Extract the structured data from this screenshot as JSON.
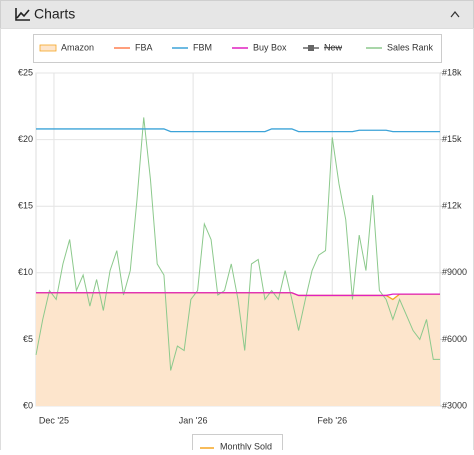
{
  "header": {
    "title": "Charts"
  },
  "chart_data": {
    "type": "line",
    "x": [
      0,
      1.5,
      3,
      4.5,
      6,
      7.5,
      9,
      10.5,
      12,
      13.5,
      15,
      16.5,
      18,
      19.5,
      21,
      22.5,
      24,
      25.5,
      27,
      28.5,
      30,
      31.5,
      33,
      34.5,
      36,
      37.5,
      39,
      40.5,
      42,
      43.5,
      45,
      46.5,
      48,
      49.5,
      51,
      52.5,
      54,
      55.5,
      57,
      58.5,
      60,
      61.5,
      63,
      64.5,
      66,
      67.5,
      69,
      70.5,
      72,
      73.5,
      75,
      76.5,
      78,
      79.5,
      81,
      82.5,
      84,
      85.5,
      87,
      88.5,
      90
    ],
    "xlim": [
      0,
      90
    ],
    "xticks": [
      {
        "value": 4,
        "label": "Dec '25"
      },
      {
        "value": 35,
        "label": "Jan '26"
      },
      {
        "value": 66,
        "label": "Feb '26"
      }
    ],
    "ylim": [
      0,
      25
    ],
    "yticks": [
      {
        "value": 0,
        "label": "€0"
      },
      {
        "value": 5,
        "label": "€5"
      },
      {
        "value": 10,
        "label": "€10"
      },
      {
        "value": 15,
        "label": "€15"
      },
      {
        "value": 20,
        "label": "€20"
      },
      {
        "value": 25,
        "label": "€25"
      }
    ],
    "y2lim": [
      3000,
      18000
    ],
    "y2ticks": [
      {
        "value": 3000,
        "label": "#3000"
      },
      {
        "value": 6000,
        "label": "#6000"
      },
      {
        "value": 9000,
        "label": "#9000"
      },
      {
        "value": 12000,
        "label": "#12k"
      },
      {
        "value": 15000,
        "label": "#15k"
      },
      {
        "value": 18000,
        "label": "#18k"
      }
    ],
    "grid": true,
    "series": [
      {
        "name": "Amazon",
        "color": "#f5a623",
        "fill": "#fde5cc",
        "values": [
          8.5,
          8.5,
          8.5,
          8.5,
          8.5,
          8.5,
          8.5,
          8.5,
          8.5,
          8.5,
          8.5,
          8.5,
          8.5,
          8.5,
          8.5,
          8.5,
          8.5,
          8.5,
          8.5,
          8.5,
          8.5,
          8.5,
          8.5,
          8.5,
          8.5,
          8.5,
          8.5,
          8.5,
          8.5,
          8.5,
          8.5,
          8.5,
          8.5,
          8.5,
          8.5,
          8.5,
          8.5,
          8.5,
          8.5,
          8.3,
          8.3,
          8.3,
          8.3,
          8.3,
          8.3,
          8.3,
          8.3,
          8.3,
          8.3,
          8.3,
          8.3,
          8.3,
          8.3,
          8.0,
          8.4,
          8.4,
          8.4,
          8.4,
          8.4,
          8.4,
          8.4
        ]
      },
      {
        "name": "FBA",
        "color": "#ff7f50",
        "values": [
          null,
          null,
          null,
          null,
          null,
          null,
          null,
          null,
          null,
          null,
          null,
          null,
          null,
          null,
          null,
          null,
          null,
          null,
          null,
          null,
          null,
          null,
          null,
          null,
          null,
          null,
          null,
          null,
          null,
          null,
          null,
          null,
          null,
          null,
          null,
          null,
          null,
          null,
          null,
          null,
          null,
          null,
          null,
          null,
          null,
          null,
          null,
          null,
          null,
          null,
          null,
          null,
          null,
          null,
          null,
          null,
          null,
          null,
          null,
          null,
          null
        ]
      },
      {
        "name": "FBM",
        "color": "#3ca3d8",
        "values": [
          20.8,
          20.8,
          20.8,
          20.8,
          20.8,
          20.8,
          20.8,
          20.8,
          20.8,
          20.8,
          20.8,
          20.8,
          20.8,
          20.8,
          20.8,
          20.8,
          20.8,
          20.8,
          20.8,
          20.8,
          20.6,
          20.6,
          20.6,
          20.6,
          20.6,
          20.6,
          20.6,
          20.6,
          20.6,
          20.6,
          20.6,
          20.6,
          20.6,
          20.6,
          20.6,
          20.8,
          20.8,
          20.8,
          20.8,
          20.6,
          20.6,
          20.6,
          20.6,
          20.6,
          20.6,
          20.6,
          20.6,
          20.6,
          20.7,
          20.7,
          20.7,
          20.7,
          20.7,
          20.6,
          20.6,
          20.6,
          20.6,
          20.6,
          20.6,
          20.6,
          20.6
        ]
      },
      {
        "name": "Buy Box",
        "color": "#e020c0",
        "values": [
          8.5,
          8.5,
          8.5,
          8.5,
          8.5,
          8.5,
          8.5,
          8.5,
          8.5,
          8.5,
          8.5,
          8.5,
          8.5,
          8.5,
          8.5,
          8.5,
          8.5,
          8.5,
          8.5,
          8.5,
          8.5,
          8.5,
          8.5,
          8.5,
          8.5,
          8.5,
          8.5,
          8.5,
          8.5,
          8.5,
          8.5,
          8.5,
          8.5,
          8.5,
          8.5,
          8.5,
          8.5,
          8.5,
          8.5,
          8.3,
          8.3,
          8.3,
          8.3,
          8.3,
          8.3,
          8.3,
          8.3,
          8.3,
          8.3,
          8.3,
          8.3,
          8.3,
          8.3,
          8.4,
          8.4,
          8.4,
          8.4,
          8.4,
          8.4,
          8.4,
          8.4
        ]
      },
      {
        "name": "New",
        "color": "#666666",
        "visible": false,
        "values": [
          null,
          null,
          null,
          null,
          null,
          null,
          null,
          null,
          null,
          null,
          null,
          null,
          null,
          null,
          null,
          null,
          null,
          null,
          null,
          null,
          null,
          null,
          null,
          null,
          null,
          null,
          null,
          null,
          null,
          null,
          null,
          null,
          null,
          null,
          null,
          null,
          null,
          null,
          null,
          null,
          null,
          null,
          null,
          null,
          null,
          null,
          null,
          null,
          null,
          null,
          null,
          null,
          null,
          null,
          null,
          null,
          null,
          null,
          null,
          null,
          null
        ]
      },
      {
        "name": "Sales Rank",
        "color": "#8cc98c",
        "axis": "y2",
        "values": [
          5300,
          6900,
          8200,
          7800,
          9400,
          10500,
          8200,
          8900,
          7500,
          8700,
          7300,
          9100,
          10000,
          8000,
          9100,
          12300,
          16000,
          13200,
          9400,
          8900,
          4600,
          5700,
          5500,
          7800,
          8200,
          11200,
          10500,
          8000,
          8200,
          9400,
          7800,
          5500,
          9400,
          9600,
          7800,
          8200,
          7800,
          9100,
          7800,
          6400,
          7800,
          9100,
          9800,
          10000,
          15100,
          13000,
          11400,
          7800,
          10700,
          9100,
          12500,
          8200,
          7800,
          6900,
          7800,
          7100,
          6400,
          6000,
          6900,
          5100,
          5100
        ]
      }
    ],
    "extra_legend": {
      "name": "Monthly Sold",
      "color": "#f5a623"
    }
  }
}
